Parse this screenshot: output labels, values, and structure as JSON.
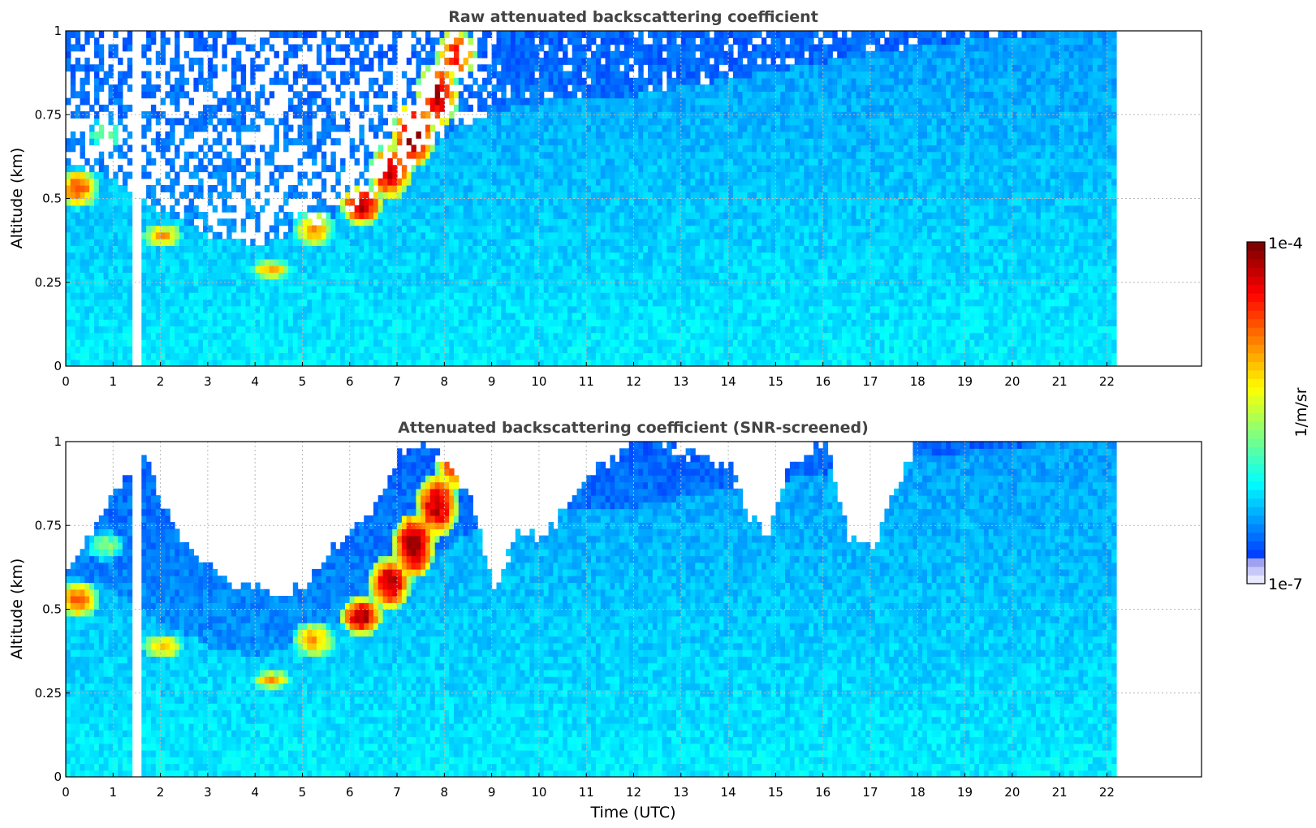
{
  "chart_data": [
    {
      "type": "heatmap",
      "title": "Raw attenuated backscattering coefficient",
      "xlabel": "",
      "ylabel": "Altitude (km)",
      "xlim": [
        0,
        24
      ],
      "ylim": [
        0,
        1
      ],
      "x_ticks": [
        "0",
        "1",
        "2",
        "3",
        "4",
        "5",
        "6",
        "7",
        "8",
        "9",
        "10",
        "11",
        "12",
        "13",
        "14",
        "15",
        "16",
        "17",
        "18",
        "19",
        "20",
        "21",
        "22"
      ],
      "y_ticks": [
        "0",
        "0.25",
        "0.5",
        "0.75",
        "1"
      ],
      "grid": true,
      "data_end_time": 22.15,
      "data_gap": [
        1.45,
        1.55
      ],
      "features": {
        "background_layer_top_km": [
          [
            0,
            0.6
          ],
          [
            1,
            0.55
          ],
          [
            2,
            0.45
          ],
          [
            3,
            0.38
          ],
          [
            4,
            0.35
          ],
          [
            5,
            0.4
          ],
          [
            6,
            0.46
          ],
          [
            7,
            0.55
          ],
          [
            8,
            0.68
          ],
          [
            9,
            0.75
          ],
          [
            10,
            0.78
          ],
          [
            12,
            0.8
          ],
          [
            14,
            0.85
          ],
          [
            16,
            0.9
          ],
          [
            18,
            0.95
          ],
          [
            22.15,
            1.0
          ]
        ],
        "aerosol_layer": [
          [
            0.2,
            0.52,
            0.06,
            0.8
          ],
          [
            0.8,
            0.68,
            0.05,
            0.5
          ],
          [
            2.0,
            0.38,
            0.04,
            0.7
          ],
          [
            4.3,
            0.28,
            0.03,
            0.7
          ],
          [
            5.2,
            0.4,
            0.06,
            0.7
          ],
          [
            6.2,
            0.47,
            0.06,
            0.95
          ],
          [
            6.8,
            0.57,
            0.08,
            0.95
          ],
          [
            7.3,
            0.68,
            0.1,
            1.0
          ],
          [
            7.8,
            0.8,
            0.1,
            0.95
          ],
          [
            8.2,
            0.92,
            0.08,
            0.85
          ]
        ]
      },
      "colorbar": {
        "label": "1/m/sr",
        "min": "1e-7",
        "max": "1e-4",
        "scale": "log",
        "colormap": "jet"
      }
    },
    {
      "type": "heatmap",
      "title": "Attenuated backscattering coefficient (SNR-screened)",
      "xlabel": "Time (UTC)",
      "ylabel": "Altitude (km)",
      "xlim": [
        0,
        24
      ],
      "ylim": [
        0,
        1
      ],
      "x_ticks": [
        "0",
        "1",
        "2",
        "3",
        "4",
        "5",
        "6",
        "7",
        "8",
        "9",
        "10",
        "11",
        "12",
        "13",
        "14",
        "15",
        "16",
        "17",
        "18",
        "19",
        "20",
        "21",
        "22"
      ],
      "y_ticks": [
        "0",
        "0.25",
        "0.5",
        "0.75",
        "1"
      ],
      "grid": true,
      "data_end_time": 22.15,
      "data_gap": [
        1.45,
        1.55
      ],
      "screened_boundary_km": [
        [
          0,
          0.62
        ],
        [
          0.5,
          0.72
        ],
        [
          1.0,
          0.85
        ],
        [
          1.6,
          0.95
        ],
        [
          2.0,
          0.8
        ],
        [
          2.5,
          0.68
        ],
        [
          3.0,
          0.62
        ],
        [
          3.5,
          0.56
        ],
        [
          4.0,
          0.56
        ],
        [
          4.5,
          0.54
        ],
        [
          5.0,
          0.56
        ],
        [
          5.5,
          0.65
        ],
        [
          6.0,
          0.72
        ],
        [
          6.5,
          0.8
        ],
        [
          7.0,
          0.95
        ],
        [
          7.5,
          1.0
        ],
        [
          8.5,
          0.82
        ],
        [
          9.0,
          0.55
        ],
        [
          9.5,
          0.72
        ],
        [
          10.0,
          0.7
        ],
        [
          10.5,
          0.78
        ],
        [
          11.0,
          0.9
        ],
        [
          11.5,
          0.94
        ],
        [
          12.0,
          1.0
        ],
        [
          14.0,
          0.92
        ],
        [
          14.3,
          0.78
        ],
        [
          14.8,
          0.72
        ],
        [
          15.2,
          0.9
        ],
        [
          16.0,
          1.0
        ],
        [
          16.5,
          0.7
        ],
        [
          17.0,
          0.68
        ],
        [
          17.5,
          0.85
        ],
        [
          18.0,
          1.0
        ],
        [
          22.15,
          1.0
        ]
      ],
      "colorbar": {
        "label": "1/m/sr",
        "min": "1e-7",
        "max": "1e-4",
        "scale": "log",
        "colormap": "jet"
      }
    }
  ],
  "colorbar": {
    "label": "1/m/sr",
    "max_label": "1e-4",
    "min_label": "1e-7"
  }
}
